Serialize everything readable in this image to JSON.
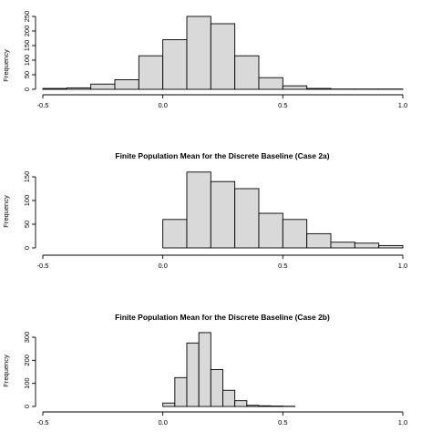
{
  "chart_data": [
    {
      "type": "bar",
      "title": "",
      "xlabel": "",
      "ylabel": "Frequency",
      "xlim": [
        -0.5,
        1.0
      ],
      "ylim": [
        0,
        250
      ],
      "xticks": [
        "-0.5",
        "0.0",
        "0.5",
        "1.0"
      ],
      "yticks": [
        "0",
        "50",
        "100",
        "150",
        "200",
        "250"
      ],
      "bin_width": 0.1,
      "bins": [
        {
          "x0": -0.5,
          "x1": -0.4,
          "count": 3
        },
        {
          "x0": -0.4,
          "x1": -0.3,
          "count": 5
        },
        {
          "x0": -0.3,
          "x1": -0.2,
          "count": 18
        },
        {
          "x0": -0.2,
          "x1": -0.1,
          "count": 33
        },
        {
          "x0": -0.1,
          "x1": 0.0,
          "count": 115
        },
        {
          "x0": 0.0,
          "x1": 0.1,
          "count": 170
        },
        {
          "x0": 0.1,
          "x1": 0.2,
          "count": 250
        },
        {
          "x0": 0.2,
          "x1": 0.3,
          "count": 225
        },
        {
          "x0": 0.3,
          "x1": 0.4,
          "count": 115
        },
        {
          "x0": 0.4,
          "x1": 0.5,
          "count": 40
        },
        {
          "x0": 0.5,
          "x1": 0.6,
          "count": 12
        },
        {
          "x0": 0.6,
          "x1": 0.7,
          "count": 3
        },
        {
          "x0": 0.7,
          "x1": 0.8,
          "count": 1
        },
        {
          "x0": 0.8,
          "x1": 0.9,
          "count": 1
        },
        {
          "x0": 0.9,
          "x1": 1.0,
          "count": 1
        }
      ]
    },
    {
      "type": "bar",
      "title": "Finite Population Mean for the Discrete Baseline (Case 2a)",
      "xlabel": "",
      "ylabel": "Frequency",
      "xlim": [
        -0.5,
        1.0
      ],
      "ylim": [
        0,
        150
      ],
      "xticks": [
        "-0.5",
        "0.0",
        "0.5",
        "1.0"
      ],
      "yticks": [
        "0",
        "50",
        "100",
        "150"
      ],
      "bin_width": 0.1,
      "bins": [
        {
          "x0": 0.0,
          "x1": 0.1,
          "count": 60
        },
        {
          "x0": 0.1,
          "x1": 0.2,
          "count": 160
        },
        {
          "x0": 0.2,
          "x1": 0.3,
          "count": 140
        },
        {
          "x0": 0.3,
          "x1": 0.4,
          "count": 125
        },
        {
          "x0": 0.4,
          "x1": 0.5,
          "count": 73
        },
        {
          "x0": 0.5,
          "x1": 0.6,
          "count": 60
        },
        {
          "x0": 0.6,
          "x1": 0.7,
          "count": 30
        },
        {
          "x0": 0.7,
          "x1": 0.8,
          "count": 12
        },
        {
          "x0": 0.8,
          "x1": 0.9,
          "count": 10
        },
        {
          "x0": 0.9,
          "x1": 1.0,
          "count": 5
        }
      ]
    },
    {
      "type": "bar",
      "title": "Finite Population Mean for the Discrete Baseline (Case 2b)",
      "xlabel": "",
      "ylabel": "Frequency",
      "xlim": [
        -0.5,
        1.0
      ],
      "ylim": [
        0,
        300
      ],
      "xticks": [
        "-0.5",
        "0.0",
        "0.5",
        "1.0"
      ],
      "yticks": [
        "0",
        "100",
        "200",
        "300"
      ],
      "bin_width": 0.05,
      "bins": [
        {
          "x0": 0.0,
          "x1": 0.05,
          "count": 15
        },
        {
          "x0": 0.05,
          "x1": 0.1,
          "count": 125
        },
        {
          "x0": 0.1,
          "x1": 0.15,
          "count": 275
        },
        {
          "x0": 0.15,
          "x1": 0.2,
          "count": 320
        },
        {
          "x0": 0.2,
          "x1": 0.25,
          "count": 160
        },
        {
          "x0": 0.25,
          "x1": 0.3,
          "count": 70
        },
        {
          "x0": 0.3,
          "x1": 0.35,
          "count": 25
        },
        {
          "x0": 0.35,
          "x1": 0.4,
          "count": 5
        },
        {
          "x0": 0.4,
          "x1": 0.45,
          "count": 3
        },
        {
          "x0": 0.45,
          "x1": 0.5,
          "count": 2
        },
        {
          "x0": 0.5,
          "x1": 0.55,
          "count": 1
        }
      ]
    }
  ],
  "style": {
    "bar_fill": "#d9d9d9",
    "bar_stroke": "#000000",
    "axis_color": "#000000"
  }
}
